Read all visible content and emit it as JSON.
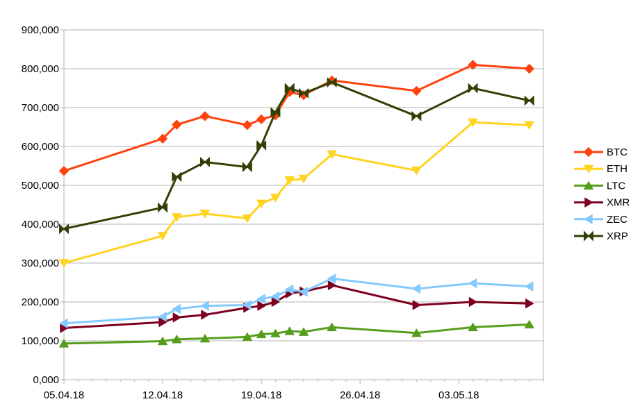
{
  "chart_data": {
    "type": "line",
    "title": "",
    "xlabel": "",
    "ylabel": "",
    "ylim": [
      0,
      900000
    ],
    "y_ticks": [
      0,
      100000,
      200000,
      300000,
      400000,
      500000,
      600000,
      700000,
      800000,
      900000
    ],
    "y_tick_labels": [
      "0,000",
      "100,000",
      "200,000",
      "300,000",
      "400,000",
      "500,000",
      "600,000",
      "700,000",
      "800,000",
      "900,000"
    ],
    "xlim": [
      "2018-04-05",
      "2018-05-09"
    ],
    "x_ticks": [
      "2018-04-05",
      "2018-04-12",
      "2018-04-19",
      "2018-04-26",
      "2018-05-03"
    ],
    "x_tick_labels": [
      "05.04.18",
      "12.04.18",
      "19.04.18",
      "26.04.18",
      "03.05.18"
    ],
    "grid": "horizontal",
    "legend_position": "right",
    "x": [
      "2018-04-05",
      "2018-04-12",
      "2018-04-13",
      "2018-04-15",
      "2018-04-18",
      "2018-04-19",
      "2018-04-20",
      "2018-04-21",
      "2018-04-22",
      "2018-04-24",
      "2018-04-30",
      "2018-05-04",
      "2018-05-08"
    ],
    "series": [
      {
        "name": "BTC",
        "color": "#ff420e",
        "marker": "diamond",
        "values": [
          537000,
          620000,
          656000,
          678000,
          655000,
          670000,
          680000,
          740000,
          732000,
          770000,
          743000,
          810000,
          800000
        ]
      },
      {
        "name": "ETH",
        "color": "#ffd320",
        "marker": "triangle-down",
        "values": [
          300000,
          370000,
          418000,
          427000,
          415000,
          453000,
          468000,
          513000,
          517000,
          580000,
          538000,
          662000,
          655000
        ]
      },
      {
        "name": "LTC",
        "color": "#579d1c",
        "marker": "triangle-up",
        "values": [
          93000,
          99000,
          104000,
          106000,
          110000,
          117000,
          119000,
          125000,
          123000,
          135000,
          120000,
          135000,
          142000
        ]
      },
      {
        "name": "XMR",
        "color": "#7e0021",
        "marker": "triangle-right",
        "values": [
          133000,
          148000,
          160000,
          167000,
          185000,
          190000,
          200000,
          222000,
          227000,
          243000,
          192000,
          200000,
          196000
        ]
      },
      {
        "name": "ZEC",
        "color": "#83caff",
        "marker": "triangle-left",
        "values": [
          145000,
          162000,
          182000,
          190000,
          192000,
          208000,
          214000,
          232000,
          226000,
          260000,
          234000,
          248000,
          240000
        ]
      },
      {
        "name": "XRP",
        "color": "#314004",
        "marker": "bowtie",
        "values": [
          388000,
          443000,
          522000,
          560000,
          547000,
          603000,
          688000,
          750000,
          737000,
          765000,
          678000,
          750000,
          718000
        ]
      }
    ]
  }
}
